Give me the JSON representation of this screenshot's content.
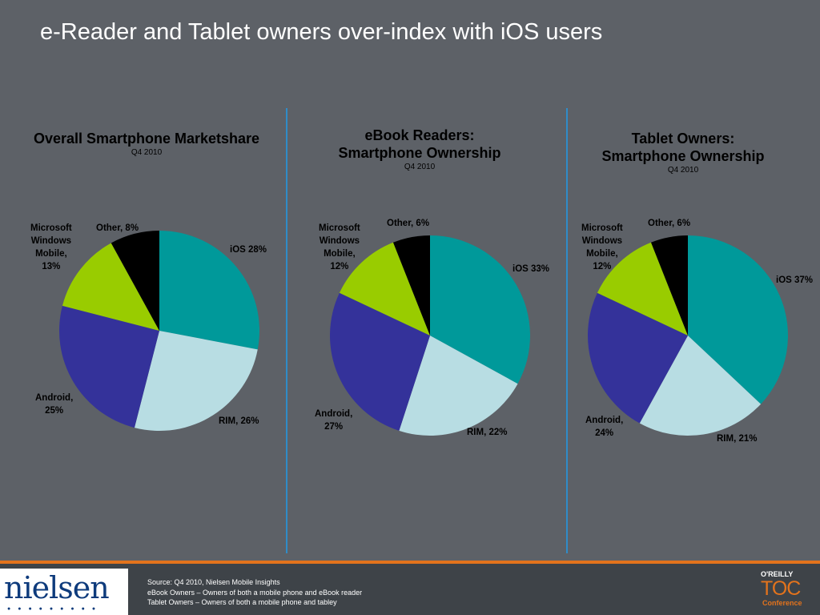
{
  "title": "e-Reader and Tablet owners over-index with iOS users",
  "colors": {
    "iOS": "#00999a",
    "RIM": "#b8dde3",
    "Android": "#34329a",
    "Microsoft": "#99cc00",
    "Other": "#000000"
  },
  "chart_data": [
    {
      "type": "pie",
      "title": "Overall Smartphone Marketshare",
      "subtitle": "Q4 2010",
      "slices": [
        {
          "key": "iOS",
          "value": 28,
          "label": "iOS 28%"
        },
        {
          "key": "RIM",
          "value": 26,
          "label": "RIM, 26%"
        },
        {
          "key": "Android",
          "value": 25,
          "label": "Android,\n25%"
        },
        {
          "key": "Microsoft",
          "value": 13,
          "label": "Microsoft\nWindows\nMobile,\n13%"
        },
        {
          "key": "Other",
          "value": 8,
          "label": "Other, 8%"
        }
      ]
    },
    {
      "type": "pie",
      "title": "eBook Readers:\nSmartphone Ownership",
      "subtitle": "Q4 2010",
      "slices": [
        {
          "key": "iOS",
          "value": 33,
          "label": "iOS 33%"
        },
        {
          "key": "RIM",
          "value": 22,
          "label": "RIM, 22%"
        },
        {
          "key": "Android",
          "value": 27,
          "label": "Android,\n27%"
        },
        {
          "key": "Microsoft",
          "value": 12,
          "label": "Microsoft\nWindows\nMobile,\n12%"
        },
        {
          "key": "Other",
          "value": 6,
          "label": "Other, 6%"
        }
      ]
    },
    {
      "type": "pie",
      "title": "Tablet Owners:\nSmartphone Ownership",
      "subtitle": "Q4 2010",
      "slices": [
        {
          "key": "iOS",
          "value": 37,
          "label": "iOS 37%"
        },
        {
          "key": "RIM",
          "value": 21,
          "label": "RIM, 21%"
        },
        {
          "key": "Android",
          "value": 24,
          "label": "Android,\n24%"
        },
        {
          "key": "Microsoft",
          "value": 12,
          "label": "Microsoft\nWindows\nMobile,\n12%"
        },
        {
          "key": "Other",
          "value": 6,
          "label": "Other, 6%"
        }
      ]
    }
  ],
  "footer": {
    "source": "Source: Q4 2010, Nielsen Mobile Insights",
    "note1": "eBook Owners – Owners of both a mobile phone and eBook reader",
    "note2": "Tablet Owners – Owners of both a mobile phone and tabley",
    "logo_left": "nielsen",
    "logo_right_top": "O'REILLY",
    "logo_right_main": "TOC",
    "logo_right_sub": "Conference"
  }
}
